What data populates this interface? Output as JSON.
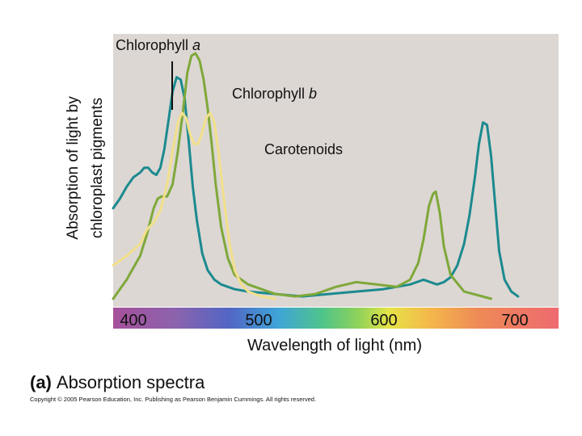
{
  "chart_data": {
    "type": "line",
    "ylabel_lines": [
      "Absorption of light by",
      "chloroplast pigments"
    ],
    "xlabel": "Wavelength of light (nm)",
    "x_ticks": [
      "400",
      "500",
      "600",
      "700"
    ],
    "xlim": [
      380,
      710
    ],
    "ylim": [
      0,
      1
    ],
    "panel_label": "(a)",
    "panel_caption": "Absorption spectra",
    "copyright": "Copyright © 2005 Pearson Education, Inc. Publishing as Pearson Benjamin Cummings. All rights reserved.",
    "series": [
      {
        "name": "Chlorophyll a",
        "name_main": "Chlorophyll ",
        "name_italic": "a",
        "color": "#1b8a8f",
        "points": [
          [
            380,
            0.38
          ],
          [
            385,
            0.42
          ],
          [
            390,
            0.47
          ],
          [
            395,
            0.51
          ],
          [
            400,
            0.53
          ],
          [
            403,
            0.55
          ],
          [
            406,
            0.55
          ],
          [
            409,
            0.53
          ],
          [
            412,
            0.52
          ],
          [
            415,
            0.55
          ],
          [
            418,
            0.63
          ],
          [
            421,
            0.75
          ],
          [
            424,
            0.87
          ],
          [
            427,
            0.93
          ],
          [
            430,
            0.92
          ],
          [
            433,
            0.84
          ],
          [
            436,
            0.66
          ],
          [
            439,
            0.47
          ],
          [
            442,
            0.33
          ],
          [
            446,
            0.19
          ],
          [
            450,
            0.12
          ],
          [
            455,
            0.08
          ],
          [
            460,
            0.06
          ],
          [
            470,
            0.04
          ],
          [
            480,
            0.03
          ],
          [
            500,
            0.02
          ],
          [
            520,
            0.01
          ],
          [
            540,
            0.02
          ],
          [
            560,
            0.03
          ],
          [
            580,
            0.04
          ],
          [
            590,
            0.05
          ],
          [
            600,
            0.06
          ],
          [
            610,
            0.08
          ],
          [
            615,
            0.07
          ],
          [
            620,
            0.06
          ],
          [
            625,
            0.07
          ],
          [
            630,
            0.09
          ],
          [
            635,
            0.14
          ],
          [
            640,
            0.23
          ],
          [
            644,
            0.35
          ],
          [
            648,
            0.51
          ],
          [
            651,
            0.65
          ],
          [
            654,
            0.74
          ],
          [
            657,
            0.73
          ],
          [
            660,
            0.6
          ],
          [
            663,
            0.4
          ],
          [
            666,
            0.2
          ],
          [
            670,
            0.08
          ],
          [
            675,
            0.03
          ],
          [
            680,
            0.01
          ]
        ]
      },
      {
        "name": "Chlorophyll b",
        "name_main": "Chlorophyll ",
        "name_italic": "b",
        "color": "#7fa83a",
        "points": [
          [
            380,
            0.0
          ],
          [
            390,
            0.08
          ],
          [
            400,
            0.18
          ],
          [
            405,
            0.27
          ],
          [
            410,
            0.38
          ],
          [
            413,
            0.42
          ],
          [
            416,
            0.43
          ],
          [
            420,
            0.43
          ],
          [
            424,
            0.48
          ],
          [
            428,
            0.62
          ],
          [
            432,
            0.8
          ],
          [
            435,
            0.95
          ],
          [
            438,
            1.02
          ],
          [
            441,
            1.03
          ],
          [
            444,
            1.0
          ],
          [
            447,
            0.92
          ],
          [
            450,
            0.8
          ],
          [
            453,
            0.65
          ],
          [
            456,
            0.48
          ],
          [
            460,
            0.3
          ],
          [
            465,
            0.17
          ],
          [
            470,
            0.1
          ],
          [
            480,
            0.06
          ],
          [
            490,
            0.04
          ],
          [
            500,
            0.02
          ],
          [
            515,
            0.01
          ],
          [
            530,
            0.02
          ],
          [
            545,
            0.05
          ],
          [
            560,
            0.07
          ],
          [
            575,
            0.06
          ],
          [
            590,
            0.05
          ],
          [
            600,
            0.08
          ],
          [
            606,
            0.15
          ],
          [
            610,
            0.25
          ],
          [
            614,
            0.39
          ],
          [
            617,
            0.44
          ],
          [
            619,
            0.45
          ],
          [
            622,
            0.36
          ],
          [
            625,
            0.22
          ],
          [
            630,
            0.1
          ],
          [
            640,
            0.03
          ],
          [
            660,
            0.0
          ]
        ]
      },
      {
        "name": "Carotenoids",
        "color": "#f2e08a",
        "points": [
          [
            380,
            0.14
          ],
          [
            390,
            0.18
          ],
          [
            400,
            0.23
          ],
          [
            405,
            0.29
          ],
          [
            410,
            0.32
          ],
          [
            415,
            0.37
          ],
          [
            420,
            0.48
          ],
          [
            424,
            0.62
          ],
          [
            428,
            0.74
          ],
          [
            431,
            0.78
          ],
          [
            434,
            0.76
          ],
          [
            437,
            0.69
          ],
          [
            440,
            0.65
          ],
          [
            443,
            0.65
          ],
          [
            446,
            0.7
          ],
          [
            449,
            0.76
          ],
          [
            452,
            0.78
          ],
          [
            455,
            0.74
          ],
          [
            458,
            0.62
          ],
          [
            462,
            0.42
          ],
          [
            466,
            0.24
          ],
          [
            470,
            0.12
          ],
          [
            475,
            0.06
          ],
          [
            480,
            0.03
          ],
          [
            490,
            0.01
          ],
          [
            500,
            0.0
          ]
        ]
      }
    ]
  }
}
